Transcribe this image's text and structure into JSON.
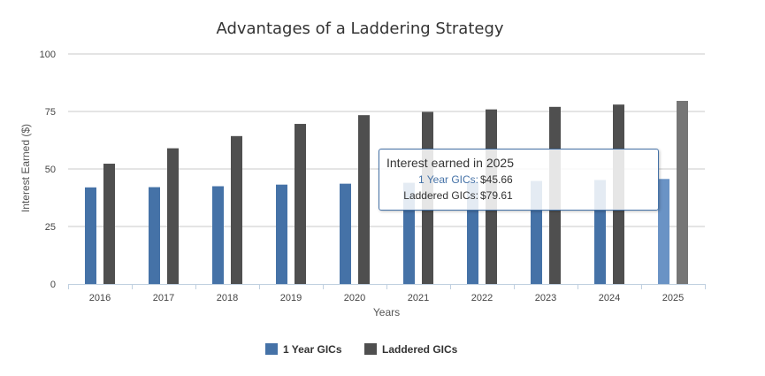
{
  "chart_data": {
    "type": "bar",
    "title": "Advantages of a Laddering Strategy",
    "xlabel": "Years",
    "ylabel": "Interest Earned ($)",
    "ylim": [
      0,
      100
    ],
    "yticks": [
      0,
      25,
      50,
      75,
      100
    ],
    "categories": [
      "2016",
      "2017",
      "2018",
      "2019",
      "2020",
      "2021",
      "2022",
      "2023",
      "2024",
      "2025"
    ],
    "series": [
      {
        "name": "1 Year GICs",
        "color": "#4572a7",
        "values": [
          42.0,
          42.1,
          42.5,
          43.2,
          43.6,
          44.0,
          44.3,
          44.8,
          45.2,
          45.66
        ]
      },
      {
        "name": "Laddered GICs",
        "color": "#4f4f4f",
        "values": [
          52.3,
          59.0,
          64.3,
          69.6,
          73.4,
          74.8,
          75.9,
          77.0,
          78.0,
          79.61
        ]
      }
    ],
    "grid": true,
    "legend": "bottom-center",
    "highlighted_category": "2025"
  },
  "tooltip": {
    "title": "Interest earned in 2025",
    "rows": [
      {
        "name": "1 Year GICs:",
        "value": "$45.66",
        "color": "#4572a7"
      },
      {
        "name": "Laddered GICs:",
        "value": "$79.61",
        "color": "#333333"
      }
    ]
  }
}
